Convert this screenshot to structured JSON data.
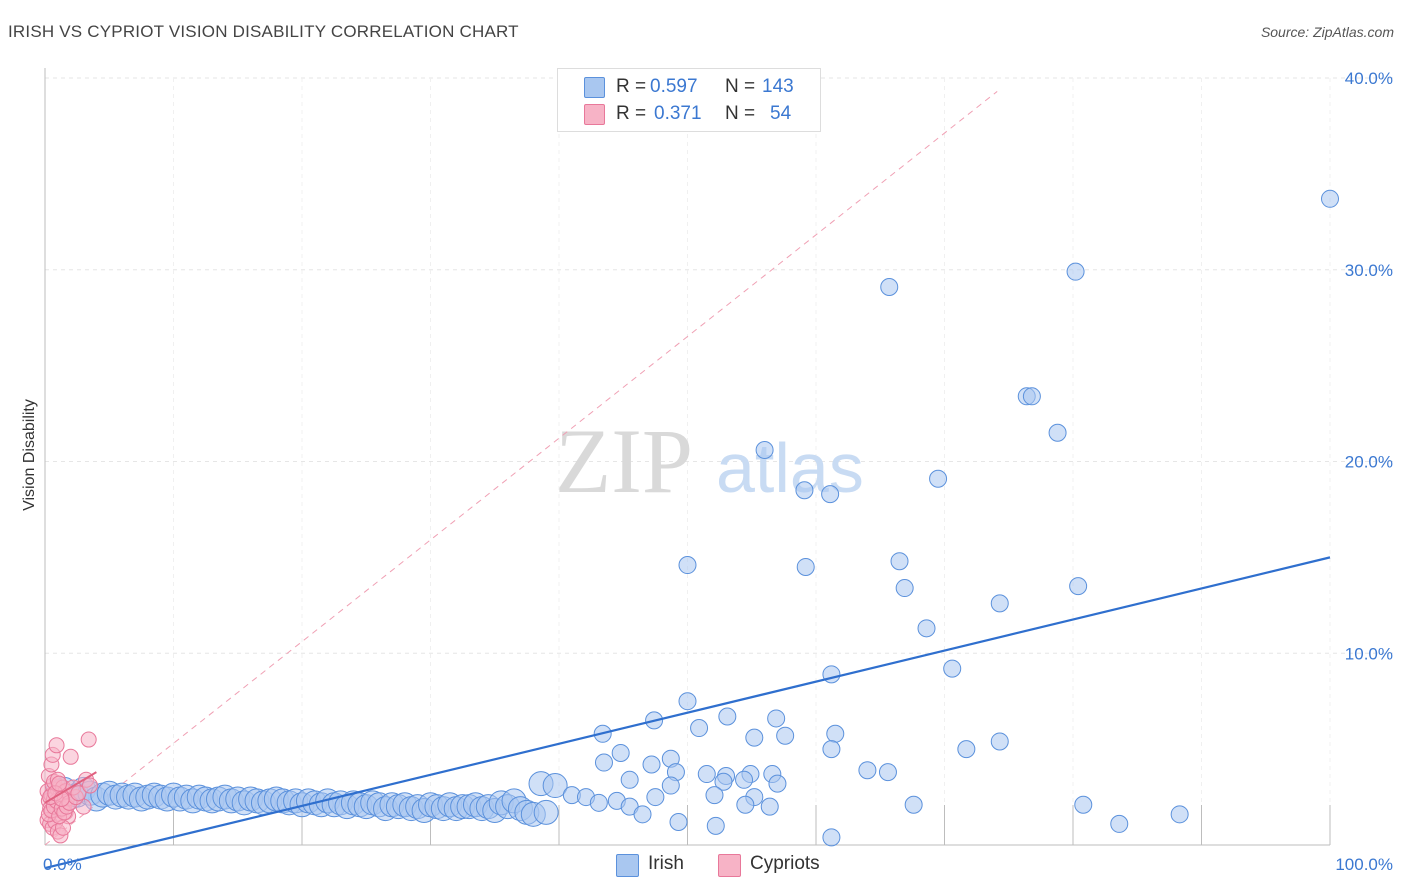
{
  "header": {
    "title": "IRISH VS CYPRIOT VISION DISABILITY CORRELATION CHART",
    "source": "Source: ZipAtlas.com"
  },
  "watermark": {
    "part1": "ZIP",
    "part2": "atlas"
  },
  "legend": {
    "irish": {
      "r_label": "R =",
      "r_value": "0.597",
      "n_label": "N =",
      "n_value": "143"
    },
    "cypriots": {
      "r_label": "R =",
      "r_value": "0.371",
      "n_label": "N =",
      "n_value": "54"
    }
  },
  "bottom_legend": {
    "irish": "Irish",
    "cypriots": "Cypriots"
  },
  "colors": {
    "irish_fill": "#a9c7f0",
    "irish_stroke": "#5b91dc",
    "irish_line": "#2f6fce",
    "cypriot_fill": "#f7b3c6",
    "cypriot_stroke": "#e8789a",
    "cypriot_line": "#e0607f",
    "tick_text": "#3b78d1",
    "grid": "#e6e6e6"
  },
  "chart_data": {
    "type": "scatter",
    "title": "IRISH VS CYPRIOT VISION DISABILITY CORRELATION CHART",
    "xlabel": "",
    "ylabel": "Vision Disability",
    "xlim": [
      0,
      100
    ],
    "ylim": [
      0,
      40
    ],
    "x_ticks": [
      "0.0%",
      "100.0%"
    ],
    "y_ticks": [
      "10.0%",
      "20.0%",
      "30.0%",
      "40.0%"
    ],
    "y_tick_values": [
      10,
      20,
      30,
      40
    ],
    "grid": true,
    "series": [
      {
        "name": "Irish",
        "r": 0.597,
        "n": 143,
        "trend": {
          "x": [
            0,
            100
          ],
          "y": [
            -1.2,
            15.0
          ]
        },
        "points": [
          [
            100,
            33.7
          ],
          [
            80.2,
            29.9
          ],
          [
            65.7,
            29.1
          ],
          [
            76.4,
            23.4
          ],
          [
            76.8,
            23.4
          ],
          [
            78.8,
            21.5
          ],
          [
            56.0,
            20.6
          ],
          [
            69.5,
            19.1
          ],
          [
            59.1,
            18.5
          ],
          [
            61.1,
            18.3
          ],
          [
            50.0,
            14.6
          ],
          [
            59.2,
            14.5
          ],
          [
            66.5,
            14.8
          ],
          [
            66.9,
            13.4
          ],
          [
            80.4,
            13.5
          ],
          [
            74.3,
            12.6
          ],
          [
            68.6,
            11.3
          ],
          [
            70.6,
            9.2
          ],
          [
            61.2,
            8.9
          ],
          [
            50.0,
            7.5
          ],
          [
            47.4,
            6.5
          ],
          [
            53.1,
            6.7
          ],
          [
            56.9,
            6.6
          ],
          [
            50.9,
            6.1
          ],
          [
            57.6,
            5.7
          ],
          [
            43.4,
            5.8
          ],
          [
            55.2,
            5.6
          ],
          [
            61.5,
            5.8
          ],
          [
            74.3,
            5.4
          ],
          [
            71.7,
            5.0
          ],
          [
            61.2,
            5.0
          ],
          [
            44.8,
            4.8
          ],
          [
            48.7,
            4.5
          ],
          [
            47.2,
            4.2
          ],
          [
            43.5,
            4.3
          ],
          [
            49.1,
            3.8
          ],
          [
            51.5,
            3.7
          ],
          [
            53.0,
            3.6
          ],
          [
            54.9,
            3.7
          ],
          [
            56.6,
            3.7
          ],
          [
            64.0,
            3.9
          ],
          [
            65.6,
            3.8
          ],
          [
            45.5,
            3.4
          ],
          [
            48.7,
            3.1
          ],
          [
            52.8,
            3.3
          ],
          [
            54.4,
            3.4
          ],
          [
            57.0,
            3.2
          ],
          [
            38.6,
            3.2
          ],
          [
            39.7,
            3.1
          ],
          [
            52.1,
            2.6
          ],
          [
            55.2,
            2.5
          ],
          [
            44.5,
            2.3
          ],
          [
            47.5,
            2.5
          ],
          [
            41.0,
            2.6
          ],
          [
            42.1,
            2.5
          ],
          [
            43.1,
            2.2
          ],
          [
            45.5,
            2.0
          ],
          [
            54.5,
            2.1
          ],
          [
            56.4,
            2.0
          ],
          [
            67.6,
            2.1
          ],
          [
            80.8,
            2.1
          ],
          [
            46.5,
            1.6
          ],
          [
            49.3,
            1.2
          ],
          [
            52.2,
            1.0
          ],
          [
            83.6,
            1.1
          ],
          [
            88.3,
            1.6
          ],
          [
            61.2,
            0.4
          ],
          [
            1.0,
            2.8
          ],
          [
            1.5,
            2.9
          ],
          [
            2.0,
            2.5
          ],
          [
            2.5,
            2.6
          ],
          [
            3.0,
            2.9
          ],
          [
            3.5,
            2.7
          ],
          [
            4.0,
            2.4
          ],
          [
            4.5,
            2.6
          ],
          [
            5.0,
            2.7
          ],
          [
            5.5,
            2.5
          ],
          [
            6.0,
            2.6
          ],
          [
            6.5,
            2.5
          ],
          [
            7.0,
            2.6
          ],
          [
            7.5,
            2.4
          ],
          [
            8.0,
            2.5
          ],
          [
            8.5,
            2.6
          ],
          [
            9.0,
            2.5
          ],
          [
            9.5,
            2.4
          ],
          [
            10.0,
            2.6
          ],
          [
            10.5,
            2.4
          ],
          [
            11.0,
            2.5
          ],
          [
            11.5,
            2.3
          ],
          [
            12.0,
            2.5
          ],
          [
            12.5,
            2.4
          ],
          [
            13.0,
            2.3
          ],
          [
            13.5,
            2.4
          ],
          [
            14.0,
            2.5
          ],
          [
            14.5,
            2.3
          ],
          [
            15.0,
            2.4
          ],
          [
            15.5,
            2.2
          ],
          [
            16.0,
            2.4
          ],
          [
            16.5,
            2.3
          ],
          [
            17.0,
            2.2
          ],
          [
            17.5,
            2.3
          ],
          [
            18.0,
            2.4
          ],
          [
            18.5,
            2.3
          ],
          [
            19.0,
            2.2
          ],
          [
            19.5,
            2.3
          ],
          [
            20.0,
            2.1
          ],
          [
            20.5,
            2.3
          ],
          [
            21.0,
            2.2
          ],
          [
            21.5,
            2.1
          ],
          [
            22.0,
            2.3
          ],
          [
            22.5,
            2.1
          ],
          [
            23.0,
            2.2
          ],
          [
            23.5,
            2.0
          ],
          [
            24.0,
            2.2
          ],
          [
            24.5,
            2.1
          ],
          [
            25.0,
            2.0
          ],
          [
            25.5,
            2.2
          ],
          [
            26.0,
            2.1
          ],
          [
            26.5,
            1.9
          ],
          [
            27.0,
            2.1
          ],
          [
            27.5,
            2.0
          ],
          [
            28.0,
            2.1
          ],
          [
            28.5,
            1.9
          ],
          [
            29.0,
            2.0
          ],
          [
            29.5,
            1.8
          ],
          [
            30.0,
            2.1
          ],
          [
            30.5,
            2.0
          ],
          [
            31.0,
            1.9
          ],
          [
            31.5,
            2.1
          ],
          [
            32.0,
            1.9
          ],
          [
            32.5,
            2.0
          ],
          [
            33.0,
            2.0
          ],
          [
            33.5,
            2.1
          ],
          [
            34.0,
            1.9
          ],
          [
            34.5,
            2.0
          ],
          [
            35.0,
            1.8
          ],
          [
            35.5,
            2.2
          ],
          [
            36.0,
            2.0
          ],
          [
            36.5,
            2.3
          ],
          [
            37.0,
            1.9
          ],
          [
            37.5,
            1.7
          ],
          [
            38.0,
            1.6
          ],
          [
            39.0,
            1.7
          ]
        ]
      },
      {
        "name": "Cypriots",
        "r": 0.371,
        "n": 54,
        "trend": {
          "x": [
            0,
            4.0
          ],
          "y": [
            2.2,
            3.8
          ]
        },
        "points": [
          [
            0.2,
            2.8
          ],
          [
            0.3,
            2.3
          ],
          [
            0.4,
            1.9
          ],
          [
            0.5,
            2.6
          ],
          [
            0.6,
            3.1
          ],
          [
            0.7,
            2.4
          ],
          [
            0.8,
            1.6
          ],
          [
            0.9,
            2.0
          ],
          [
            1.0,
            2.9
          ],
          [
            1.1,
            2.2
          ],
          [
            1.2,
            1.8
          ],
          [
            1.3,
            2.5
          ],
          [
            1.4,
            2.7
          ],
          [
            1.5,
            2.1
          ],
          [
            1.6,
            1.7
          ],
          [
            1.7,
            2.4
          ],
          [
            1.8,
            1.5
          ],
          [
            0.3,
            3.6
          ],
          [
            0.5,
            4.2
          ],
          [
            0.6,
            4.7
          ],
          [
            0.9,
            5.2
          ],
          [
            0.7,
            3.3
          ],
          [
            1.0,
            3.4
          ],
          [
            1.2,
            2.6
          ],
          [
            1.4,
            3.0
          ],
          [
            1.6,
            2.8
          ],
          [
            0.2,
            1.3
          ],
          [
            0.4,
            1.1
          ],
          [
            0.6,
            0.9
          ],
          [
            0.8,
            1.2
          ],
          [
            1.0,
            0.7
          ],
          [
            1.2,
            0.5
          ],
          [
            1.4,
            0.9
          ],
          [
            0.3,
            1.6
          ],
          [
            0.5,
            1.8
          ],
          [
            0.7,
            2.0
          ],
          [
            0.9,
            2.3
          ],
          [
            1.1,
            1.5
          ],
          [
            1.3,
            1.9
          ],
          [
            1.5,
            1.7
          ],
          [
            1.7,
            2.0
          ],
          [
            1.9,
            2.2
          ],
          [
            2.0,
            4.6
          ],
          [
            3.4,
            5.5
          ],
          [
            3.2,
            3.4
          ],
          [
            3.0,
            2.0
          ],
          [
            2.4,
            2.5
          ],
          [
            2.2,
            3.0
          ],
          [
            2.6,
            2.7
          ],
          [
            0.4,
            2.5
          ],
          [
            0.8,
            2.7
          ],
          [
            1.1,
            3.2
          ],
          [
            1.3,
            2.4
          ],
          [
            3.5,
            3.1
          ]
        ]
      }
    ],
    "reference_line": {
      "style": "dashed",
      "x": [
        0,
        74.1
      ],
      "y": [
        0,
        39.3
      ]
    }
  }
}
